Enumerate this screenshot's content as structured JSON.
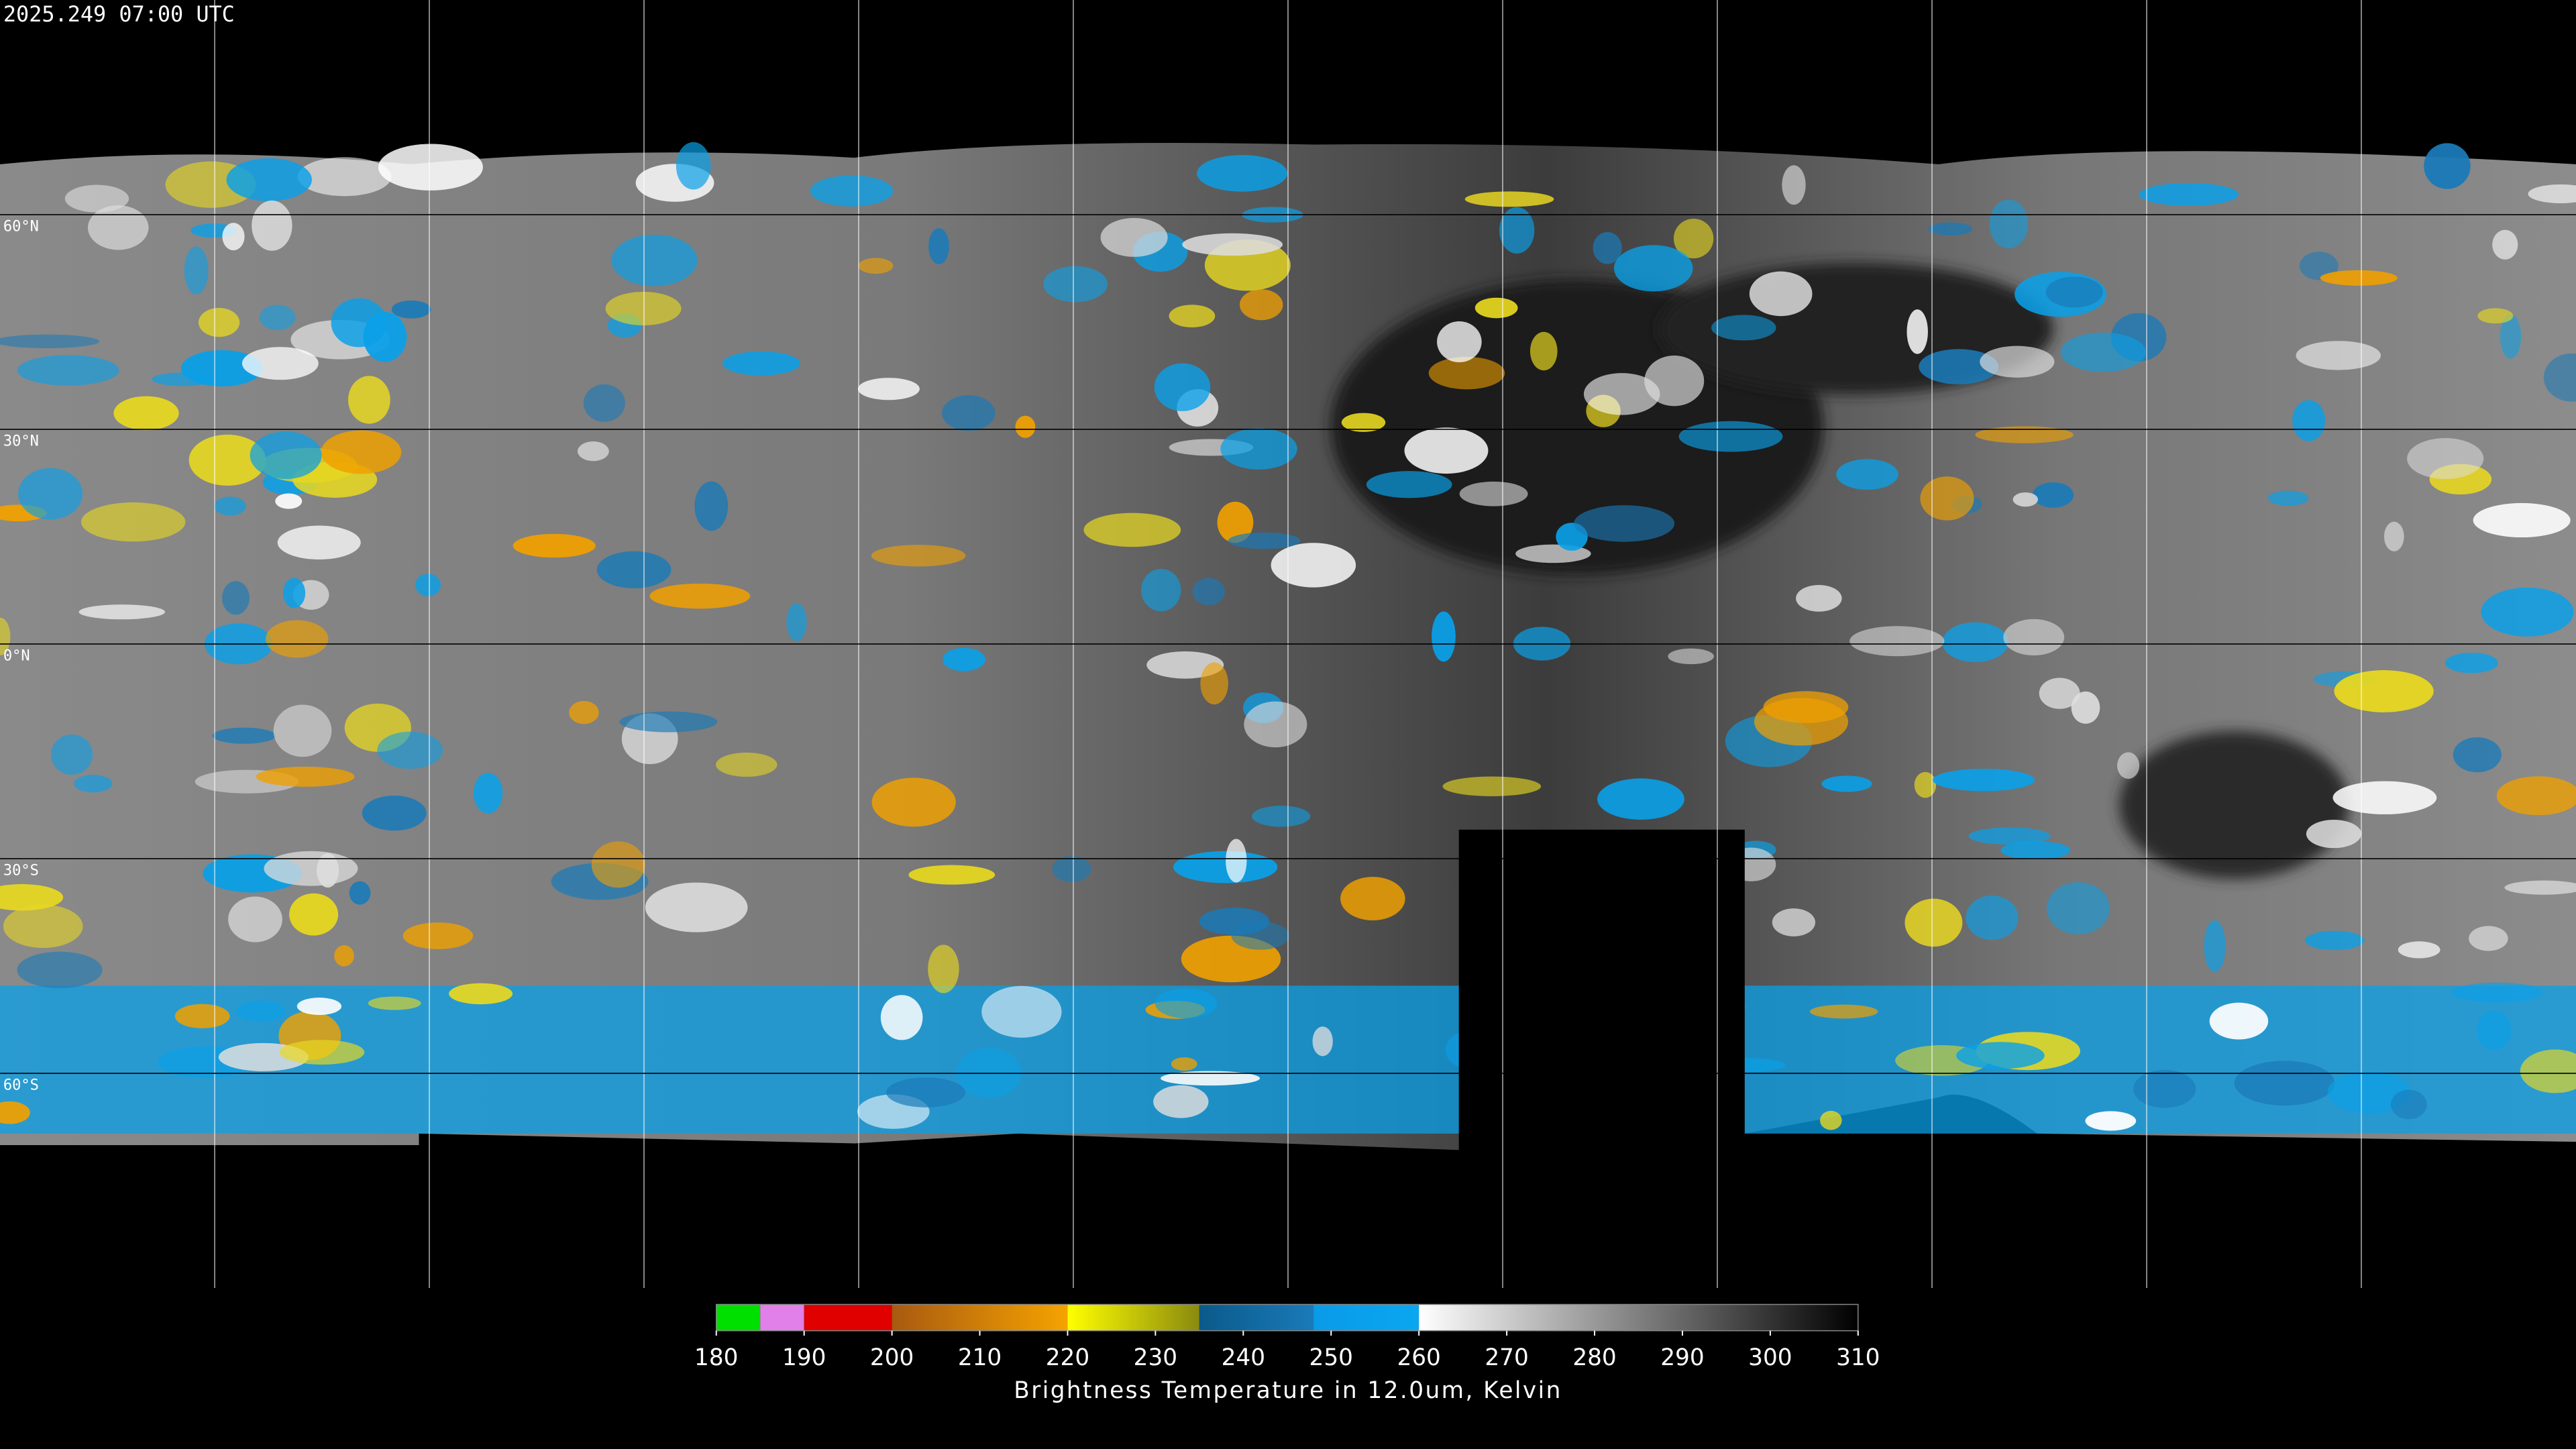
{
  "header": {
    "timestamp": "2025.249 07:00 UTC"
  },
  "map": {
    "latitudes": [
      {
        "value": 60,
        "label": "60°N"
      },
      {
        "value": 30,
        "label": "30°N"
      },
      {
        "value": 0,
        "label": "0°N"
      },
      {
        "value": -30,
        "label": "30°S"
      },
      {
        "value": -60,
        "label": "60°S"
      }
    ]
  },
  "colorbar": {
    "title": "Brightness Temperature in 12.0um, Kelvin",
    "range": [
      180,
      310
    ],
    "ticks": [
      180,
      190,
      200,
      210,
      220,
      230,
      240,
      250,
      260,
      270,
      280,
      290,
      300,
      310
    ],
    "segments": [
      {
        "from": 180,
        "to": 185,
        "colors": [
          "#00e000",
          "#00e000"
        ]
      },
      {
        "from": 185,
        "to": 190,
        "colors": [
          "#e080e8",
          "#e080e8"
        ]
      },
      {
        "from": 190,
        "to": 200,
        "colors": [
          "#e00000",
          "#e00000"
        ]
      },
      {
        "from": 200,
        "to": 220,
        "colors": [
          "#a85a10",
          "#f5a300"
        ]
      },
      {
        "from": 220,
        "to": 235,
        "colors": [
          "#ffff00",
          "#8a8a10"
        ]
      },
      {
        "from": 235,
        "to": 248,
        "colors": [
          "#0a5a8a",
          "#1a7ab8"
        ]
      },
      {
        "from": 248,
        "to": 260,
        "colors": [
          "#0a9be8",
          "#0aa6f0"
        ]
      },
      {
        "from": 260,
        "to": 310,
        "colors": [
          "#ffffff",
          "#000000"
        ]
      }
    ]
  }
}
